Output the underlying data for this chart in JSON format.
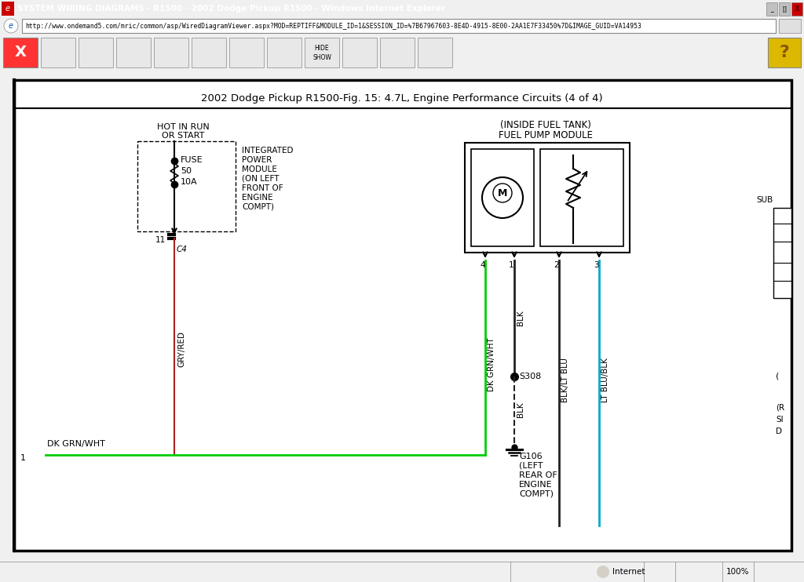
{
  "title_bar": "SYSTEM WIRING DIAGRAMS - R1500 - 2002 Dodge Pickup R1500 - Windows Internet Explorer",
  "url": "http://www.ondemand5.com/mric/common/asp/WiredDiagramViewer.aspx?MOD=REPTIFF&MODULE_ID=1&SESSION_ID=%7B67967603-8E4D-4915-8E00-2AA1E7F33450%7D&IMAGE_GUID=VA14953",
  "diagram_title": "2002 Dodge Pickup R1500-Fig. 15: 4.7L, Engine Performance Circuits (4 of 4)",
  "bg_titlebar": "#1c5bc4",
  "bg_url": "#ffffff",
  "bg_toolbar": "#d4d0c8",
  "bg_content": "#f0f0f0",
  "bg_diagram": "#ffffff",
  "bg_statusbar": "#d4d0c8",
  "wire_green": "#00cc00",
  "wire_red": "#aa2222",
  "wire_black": "#222222",
  "wire_cyan": "#00aacc"
}
